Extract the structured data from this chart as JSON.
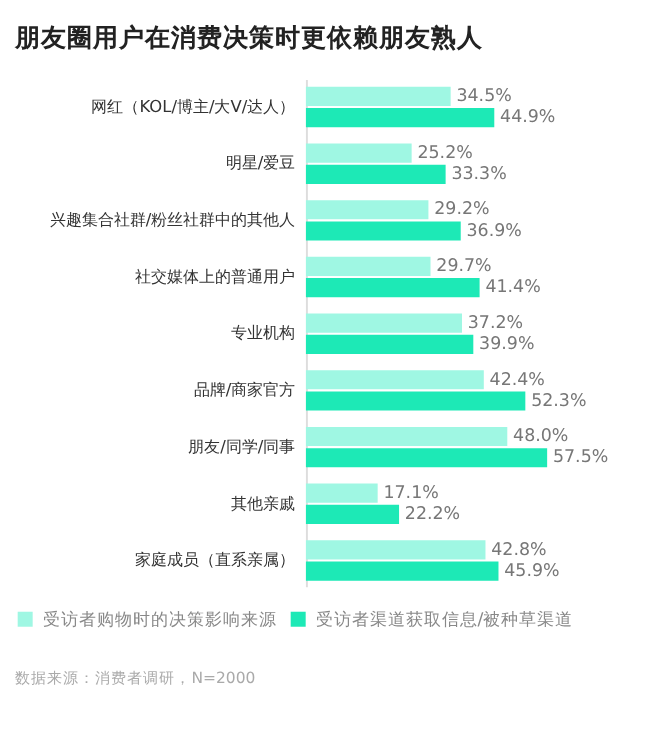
{
  "chart_data": {
    "type": "bar",
    "orientation": "horizontal",
    "title": "朋友圈用户在消费决策时更依赖朋友熟人",
    "categories": [
      "网红（KOL/博主/大V/达人）",
      "明星/爱豆",
      "兴趣集合社群/粉丝社群中的其他人",
      "社交媒体上的普通用户",
      "专业机构",
      "品牌/商家官方",
      "朋友/同学/同事",
      "其他亲戚",
      "家庭成员（直系亲属）"
    ],
    "series": [
      {
        "name": "受访者购物时的决策影响来源",
        "color": "#9ff7e3",
        "values": [
          34.5,
          25.2,
          29.2,
          29.7,
          37.2,
          42.4,
          48.0,
          17.1,
          42.8
        ],
        "value_labels": [
          "34.5%",
          "25.2%",
          "29.2%",
          "29.7%",
          "37.2%",
          "42.4%",
          "48.0%",
          "17.1%",
          "42.8%"
        ]
      },
      {
        "name": "受访者渠道获取信息/被种草渠道",
        "color": "#1de9b6",
        "values": [
          44.9,
          33.3,
          36.9,
          41.4,
          39.9,
          52.3,
          57.5,
          22.2,
          45.9
        ],
        "value_labels": [
          "44.9%",
          "33.3%",
          "36.9%",
          "41.4%",
          "39.9%",
          "52.3%",
          "57.5%",
          "22.2%",
          "45.9%"
        ]
      }
    ],
    "legend": "bottom",
    "annotations": [
      "数据来源：消费者调研，N=2000"
    ]
  }
}
